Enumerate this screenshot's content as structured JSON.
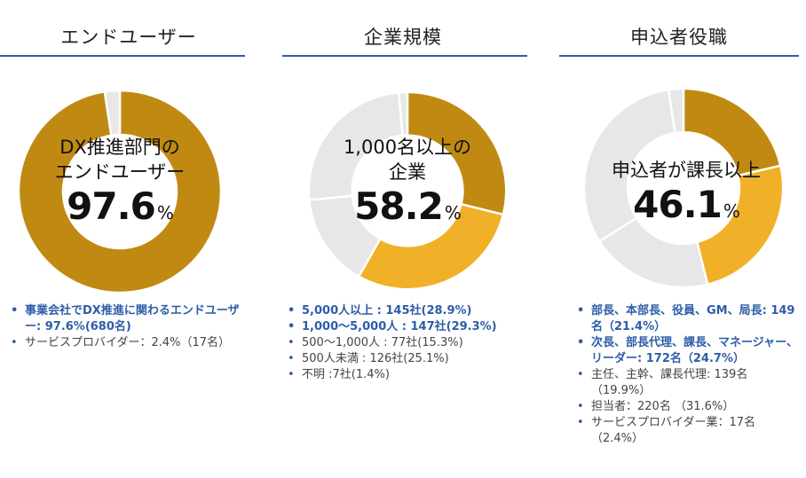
{
  "colors": {
    "dark_gold": "#C08A12",
    "gold": "#F0B128",
    "gray": "#E7E7E7",
    "rule": "#2E5DA7",
    "highlight": "#2E5DA7"
  },
  "chart_data": [
    {
      "type": "pie",
      "title": "エンドユーザー",
      "center_lines": [
        "DX推進部門の",
        "エンドユーザー"
      ],
      "center_value": "97.6",
      "center_unit": "%",
      "slices": [
        {
          "label": "事業会社でDX推進に関わるエンドユーザー",
          "value": 97.6,
          "color": "#C08A12"
        },
        {
          "label": "サービスプロバイダー",
          "value": 2.4,
          "color": "#E7E7E7"
        }
      ],
      "legend": [
        {
          "text": "事業会社でDX推進に関わるエンドユーザー: 97.6%(680名)",
          "highlight": true
        },
        {
          "text": "サービスプロバイダー：2.4%（17名）",
          "highlight": false
        }
      ]
    },
    {
      "type": "pie",
      "title": "企業規模",
      "center_lines": [
        "1,000名以上の",
        "企業"
      ],
      "center_value": "58.2",
      "center_unit": "%",
      "slices": [
        {
          "label": "5,000人以上",
          "value": 28.9,
          "color": "#C08A12"
        },
        {
          "label": "1,000～5,000人",
          "value": 29.3,
          "color": "#F0B128"
        },
        {
          "label": "500～1,000人",
          "value": 15.3,
          "color": "#E7E7E7"
        },
        {
          "label": "500人未満",
          "value": 25.1,
          "color": "#E7E7E7"
        },
        {
          "label": "不明",
          "value": 1.4,
          "color": "#E7E7E7"
        }
      ],
      "legend": [
        {
          "text": "5,000人以上 : 145社(28.9%)",
          "highlight": true
        },
        {
          "text": "1,000～5,000人 : 147社(29.3%)",
          "highlight": true
        },
        {
          "text": "500～1,000人 : 77社(15.3%)",
          "highlight": false
        },
        {
          "text": "500人未満 : 126社(25.1%)",
          "highlight": false
        },
        {
          "text": "不明 :7社(1.4%)",
          "highlight": false
        }
      ]
    },
    {
      "type": "pie",
      "title": "申込者役職",
      "center_lines": [
        "申込者が課長以上"
      ],
      "center_value": "46.1",
      "center_unit": "%",
      "slices": [
        {
          "label": "部長、本部長、役員、GM、局長",
          "value": 21.4,
          "color": "#C08A12"
        },
        {
          "label": "次長、部長代理、課長、マネージャー、リーダー",
          "value": 24.7,
          "color": "#F0B128"
        },
        {
          "label": "主任、主幹、課長代理",
          "value": 19.9,
          "color": "#E7E7E7"
        },
        {
          "label": "担当者",
          "value": 31.6,
          "color": "#E7E7E7"
        },
        {
          "label": "サービスプロバイダー業",
          "value": 2.4,
          "color": "#E7E7E7"
        }
      ],
      "legend": [
        {
          "text": "部長、本部長、役員、GM、局長: 149名（21.4%）",
          "highlight": true
        },
        {
          "text": "次長、部長代理、課長、マネージャー、リーダー: 172名（24.7%）",
          "highlight": true
        },
        {
          "text": "主任、主幹、課長代理: 139名（19.9%）",
          "highlight": false
        },
        {
          "text": "担当者：220名 （31.6%）",
          "highlight": false
        },
        {
          "text": "サービスプロバイダー業：17名（2.4%）",
          "highlight": false
        }
      ]
    }
  ]
}
